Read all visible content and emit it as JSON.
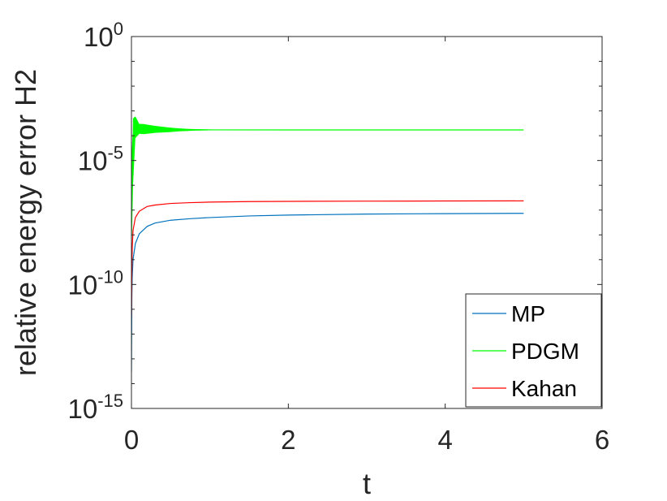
{
  "chart_data": {
    "type": "line",
    "xlabel": "t",
    "ylabel": "relative energy error H2",
    "xlim": [
      0,
      6
    ],
    "ylim": [
      1e-15,
      1
    ],
    "yscale": "log",
    "grid": false,
    "legend_position": "bottom-right",
    "x_ticks": [
      {
        "value": 0,
        "label": "0"
      },
      {
        "value": 2,
        "label": "2"
      },
      {
        "value": 4,
        "label": "4"
      },
      {
        "value": 6,
        "label": "6"
      }
    ],
    "y_ticks": [
      {
        "value": 1e-15,
        "base": "10",
        "exp": "-15"
      },
      {
        "value": 1e-10,
        "base": "10",
        "exp": "-10"
      },
      {
        "value": 1e-05,
        "base": "10",
        "exp": "-5"
      },
      {
        "value": 1,
        "base": "10",
        "exp": "0"
      }
    ],
    "series": [
      {
        "name": "MP",
        "color": "#0072bd",
        "x": [
          0,
          0.005,
          0.01,
          0.02,
          0.05,
          0.1,
          0.2,
          0.3,
          0.5,
          0.75,
          1,
          1.5,
          2,
          3,
          4,
          5
        ],
        "y": [
          3e-14,
          3e-11,
          2e-10,
          1e-09,
          4.5e-09,
          1.1e-08,
          2.2e-08,
          3e-08,
          3.9e-08,
          4.5e-08,
          5e-08,
          5.8e-08,
          6.3e-08,
          6.9e-08,
          7.2e-08,
          7.4e-08
        ]
      },
      {
        "name": "PDGM",
        "color": "#00ff00",
        "x": [
          0,
          0.01,
          0.02,
          0.05,
          0.1,
          0.2,
          0.5,
          1,
          2,
          3,
          4,
          5
        ],
        "y": [
          1e-08,
          2e-05,
          0.0001,
          0.0003,
          0.0002,
          0.00018,
          0.000175,
          0.000172,
          0.000171,
          0.000171,
          0.000171,
          0.000171
        ],
        "oscillation": {
          "x": [
            0,
            0.02,
            0.05,
            0.1,
            0.15,
            0.2,
            0.3,
            0.4,
            0.5,
            0.6,
            0.7,
            0.8,
            1.0,
            1.2
          ],
          "y_high": [
            5e-08,
            0.0005,
            0.0006,
            0.0003,
            0.0003,
            0.00028,
            0.00025,
            0.00023,
            0.00021,
            0.0002,
            0.00019,
            0.000185,
            0.00018,
            0.000175
          ],
          "y_low": [
            1e-09,
            1e-06,
            8e-05,
            0.00012,
            0.000115,
            0.00012,
            0.00013,
            0.000135,
            0.00014,
            0.00015,
            0.000155,
            0.00016,
            0.000165,
            0.000168
          ]
        }
      },
      {
        "name": "Kahan",
        "color": "#ff0000",
        "x": [
          0,
          0.005,
          0.01,
          0.02,
          0.05,
          0.1,
          0.2,
          0.3,
          0.5,
          0.75,
          1,
          1.5,
          2,
          3,
          4,
          5
        ],
        "y": [
          5e-12,
          3e-10,
          3e-09,
          1.5e-08,
          5e-08,
          9e-08,
          1.4e-07,
          1.6e-07,
          1.85e-07,
          2e-07,
          2.1e-07,
          2.2e-07,
          2.25e-07,
          2.3e-07,
          2.33e-07,
          2.35e-07
        ]
      }
    ]
  }
}
